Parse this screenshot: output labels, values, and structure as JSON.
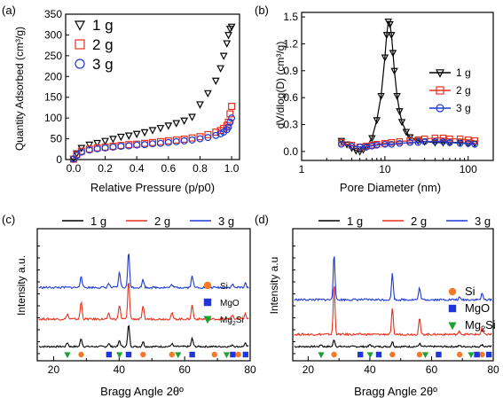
{
  "panels": [
    {
      "label": "(a)",
      "xlabel": "Relative Pressure (p/p0)",
      "ylabel": "Quantity Adsorbed (cm³/g)",
      "xticks": [
        "0.0",
        "0.2",
        "0.4",
        "0.6",
        "0.8",
        "1.0"
      ],
      "yticks": [
        "0",
        "50",
        "100",
        "150",
        "200",
        "250",
        "300",
        "350"
      ]
    },
    {
      "label": "(b)",
      "xlabel": "Pore Diameter (nm)",
      "ylabel": "dV/dlog(D) (cm³/g)",
      "xticks": [
        "1",
        "10",
        "100"
      ],
      "yticks": [
        "0.0",
        "0.3",
        "0.6",
        "0.9",
        "1.2",
        "1.5"
      ]
    },
    {
      "label": "(c)",
      "xlabel": "Bragg Angle 2θº",
      "ylabel": "Intensity a.u.",
      "xticks": [
        "20",
        "40",
        "60",
        "80"
      ]
    },
    {
      "label": "(d)",
      "xlabel": "Bragg Angle 2θº",
      "ylabel": "Intensity a.u",
      "xticks": [
        "20",
        "40",
        "60",
        "80"
      ]
    }
  ],
  "colors": {
    "s1": "#000000",
    "s2": "#e8311c",
    "s3": "#1c3ad6",
    "si": "#f47a25",
    "mgo": "#2136d9",
    "mg2si": "#20a030"
  },
  "chart_data": [
    {
      "type": "scatter",
      "panel": "a",
      "xlabel": "Relative Pressure (p/p0)",
      "ylabel": "Quantity Adsorbed (cm³/g)",
      "xlim": [
        -0.05,
        1.05
      ],
      "ylim": [
        0,
        350
      ],
      "legend_position": "top-left",
      "x": [
        0.0,
        0.02,
        0.05,
        0.1,
        0.15,
        0.2,
        0.25,
        0.3,
        0.35,
        0.4,
        0.45,
        0.5,
        0.55,
        0.6,
        0.65,
        0.7,
        0.75,
        0.8,
        0.85,
        0.9,
        0.93,
        0.95,
        0.97,
        0.98,
        0.99,
        1.0
      ],
      "series": [
        {
          "name": "1 g",
          "marker": "triangle-down",
          "values": [
            2,
            15,
            28,
            36,
            40,
            45,
            50,
            55,
            58,
            62,
            66,
            71,
            76,
            82,
            88,
            94,
            103,
            133,
            160,
            190,
            220,
            250,
            280,
            300,
            315,
            320
          ]
        },
        {
          "name": "2 g",
          "marker": "square",
          "values": [
            1,
            12,
            20,
            25,
            28,
            30,
            32,
            34,
            36,
            37,
            39,
            41,
            43,
            45,
            47,
            49,
            52,
            55,
            60,
            66,
            70,
            75,
            82,
            90,
            110,
            128
          ]
        },
        {
          "name": "3 g",
          "marker": "circle",
          "values": [
            1,
            10,
            18,
            23,
            26,
            28,
            30,
            32,
            33,
            35,
            36,
            38,
            39,
            41,
            43,
            45,
            47,
            50,
            53,
            58,
            62,
            66,
            72,
            78,
            90,
            100
          ]
        }
      ]
    },
    {
      "type": "line",
      "panel": "b",
      "xlabel": "Pore Diameter (nm)",
      "ylabel": "dV/dlog(D) (cm³/g)",
      "xscale": "log",
      "xlim": [
        1,
        200
      ],
      "ylim": [
        -0.1,
        1.55
      ],
      "legend_position": "right",
      "series": [
        {
          "name": "1 g",
          "marker": "triangle-down",
          "x": [
            3,
            3.5,
            4,
            4.5,
            5,
            5.5,
            6,
            7,
            8,
            9,
            10,
            10.5,
            11,
            11.5,
            12,
            12.5,
            13,
            14,
            15,
            16,
            18,
            20,
            25,
            30,
            40,
            50,
            60,
            80,
            100,
            120
          ],
          "values": [
            0.12,
            0.08,
            0.04,
            0.01,
            0.0,
            0.02,
            0.05,
            0.15,
            0.35,
            0.62,
            1.05,
            1.3,
            1.45,
            1.42,
            1.3,
            1.1,
            0.9,
            0.62,
            0.45,
            0.33,
            0.22,
            0.16,
            0.12,
            0.11,
            0.1,
            0.1,
            0.1,
            0.1,
            0.09,
            0.09
          ]
        },
        {
          "name": "2 g",
          "marker": "square",
          "x": [
            3,
            4,
            5,
            6,
            7,
            8,
            10,
            12,
            15,
            20,
            25,
            30,
            40,
            50,
            60,
            80,
            100,
            120
          ],
          "values": [
            0.1,
            0.07,
            0.05,
            0.06,
            0.07,
            0.08,
            0.09,
            0.1,
            0.11,
            0.12,
            0.13,
            0.14,
            0.15,
            0.15,
            0.14,
            0.14,
            0.13,
            0.12
          ]
        },
        {
          "name": "3 g",
          "marker": "circle",
          "x": [
            3,
            4,
            5,
            6,
            7,
            8,
            10,
            12,
            15,
            20,
            25,
            30,
            40,
            50,
            60,
            80,
            100,
            120
          ],
          "values": [
            0.08,
            0.06,
            0.05,
            0.05,
            0.06,
            0.07,
            0.08,
            0.08,
            0.09,
            0.1,
            0.1,
            0.11,
            0.11,
            0.11,
            0.1,
            0.09,
            0.09,
            0.08
          ]
        }
      ]
    },
    {
      "type": "line",
      "panel": "c",
      "xlabel": "Bragg Angle 2θº",
      "ylabel": "Intensity a.u.",
      "xlim": [
        15,
        80
      ],
      "legend_position": "top",
      "peaks": [
        {
          "name": "1 g",
          "baseline": 0.0,
          "noise": 0.008,
          "positions": [
            24.2,
            28.4,
            36.8,
            40.1,
            42.9,
            47.3,
            56.1,
            62.3,
            74.6,
            78.5
          ],
          "heights": [
            0.04,
            0.08,
            0.03,
            0.06,
            0.22,
            0.05,
            0.03,
            0.08,
            0.02,
            0.03
          ]
        },
        {
          "name": "2 g",
          "baseline": 0.27,
          "noise": 0.01,
          "positions": [
            24.2,
            28.4,
            36.8,
            40.1,
            42.9,
            47.3,
            56.1,
            62.3,
            74.6,
            78.5
          ],
          "heights": [
            0.05,
            0.17,
            0.05,
            0.14,
            0.38,
            0.12,
            0.06,
            0.14,
            0.04,
            0.05
          ]
        },
        {
          "name": "3 g",
          "baseline": 0.58,
          "noise": 0.01,
          "positions": [
            28.4,
            36.8,
            40.1,
            42.9,
            47.3,
            56.1,
            62.3,
            74.6,
            78.5
          ],
          "heights": [
            0.12,
            0.04,
            0.15,
            0.35,
            0.08,
            0.03,
            0.12,
            0.03,
            0.04
          ]
        }
      ],
      "phase_markers": [
        {
          "name": "Si",
          "symbol": "circle",
          "x": [
            28.4,
            47.3,
            56.1,
            69.1,
            76.4
          ]
        },
        {
          "name": "MgO",
          "symbol": "square",
          "x": [
            36.9,
            42.9,
            62.3,
            74.7,
            78.6
          ]
        },
        {
          "name": "Mg₂Si",
          "symbol": "triangle-down",
          "x": [
            24.2,
            40.1,
            58.0,
            72.8
          ]
        }
      ]
    },
    {
      "type": "line",
      "panel": "d",
      "xlabel": "Bragg Angle 2θº",
      "ylabel": "Intensity a.u",
      "xlim": [
        15,
        80
      ],
      "legend_position": "top",
      "peaks": [
        {
          "name": "1 g",
          "baseline": 0.0,
          "noise": 0.008,
          "positions": [
            24.2,
            28.4,
            40.1,
            47.3,
            56.1,
            69.1,
            76.4
          ],
          "heights": [
            0.02,
            0.07,
            0.02,
            0.05,
            0.03,
            0.01,
            0.02
          ]
        },
        {
          "name": "2 g",
          "baseline": 0.12,
          "noise": 0.01,
          "positions": [
            28.4,
            47.3,
            56.1,
            69.1,
            76.4
          ],
          "heights": [
            0.5,
            0.25,
            0.16,
            0.03,
            0.06
          ]
        },
        {
          "name": "3 g",
          "baseline": 0.46,
          "noise": 0.01,
          "positions": [
            28.4,
            47.3,
            56.1,
            69.1,
            76.4
          ],
          "heights": [
            0.46,
            0.26,
            0.12,
            0.02,
            0.06
          ]
        }
      ],
      "phase_markers": [
        {
          "name": "Si",
          "symbol": "circle",
          "x": [
            28.4,
            47.3,
            56.1,
            69.1,
            76.4
          ]
        },
        {
          "name": "MgO",
          "symbol": "square",
          "x": [
            36.9,
            42.9,
            62.3,
            74.7,
            78.6
          ]
        },
        {
          "name": "Mg₂Si",
          "symbol": "triangle-down",
          "x": [
            24.2,
            40.1,
            58.0,
            72.8
          ]
        }
      ]
    }
  ]
}
